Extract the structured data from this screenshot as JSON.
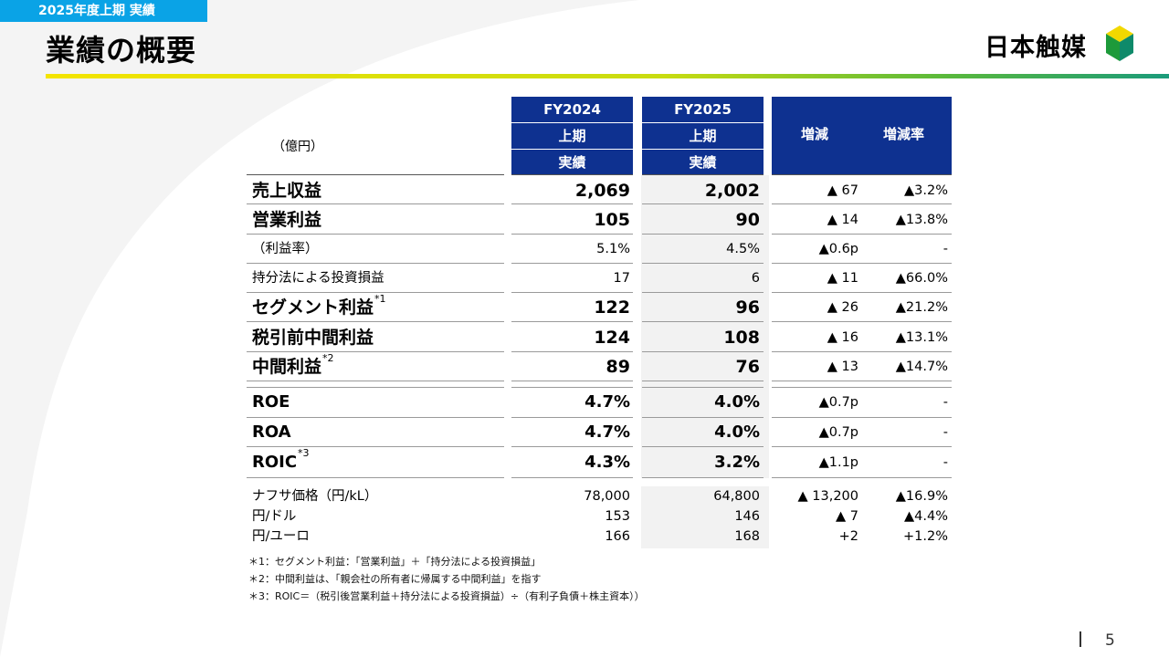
{
  "header": {
    "tag": "2025年度上期 実績",
    "title": "業績の概要",
    "logo_text": "日本触媒",
    "colors": {
      "tag_bg": "#0aa3e6",
      "header_bg": "#0e3190",
      "rule_start": "#f4e400",
      "rule_end": "#1a9b7b"
    }
  },
  "table": {
    "unit_label": "（億円）",
    "col_fy2024": {
      "line1": "FY2024",
      "line2": "上期",
      "line3": "実績"
    },
    "col_fy2025": {
      "line1": "FY2025",
      "line2": "上期",
      "line3": "実績"
    },
    "col_change": "増減",
    "col_change_rate": "増減率",
    "rows": [
      {
        "label": "売上収益",
        "fy2024": "2,069",
        "fy2025": "2,002",
        "change": "▲ 67",
        "rate": "▲3.2%"
      },
      {
        "label": "営業利益",
        "fy2024": "105",
        "fy2025": "90",
        "change": "▲ 14",
        "rate": "▲13.8%"
      },
      {
        "label": "（利益率）",
        "fy2024": "5.1%",
        "fy2025": "4.5%",
        "change": "▲0.6p",
        "rate": "-"
      },
      {
        "label": "持分法による投資損益",
        "fy2024": "17",
        "fy2025": "6",
        "change": "▲ 11",
        "rate": "▲66.0%"
      },
      {
        "label": "セグメント利益",
        "sup": "*1",
        "fy2024": "122",
        "fy2025": "96",
        "change": "▲ 26",
        "rate": "▲21.2%"
      },
      {
        "label": "税引前中間利益",
        "fy2024": "124",
        "fy2025": "108",
        "change": "▲ 16",
        "rate": "▲13.1%"
      },
      {
        "label": "中間利益",
        "sup": "*2",
        "fy2024": "89",
        "fy2025": "76",
        "change": "▲ 13",
        "rate": "▲14.7%"
      },
      {
        "label": "ROE",
        "fy2024": "4.7%",
        "fy2025": "4.0%",
        "change": "▲0.7p",
        "rate": "-"
      },
      {
        "label": "ROA",
        "fy2024": "4.7%",
        "fy2025": "4.0%",
        "change": "▲0.7p",
        "rate": "-"
      },
      {
        "label": "ROIC",
        "sup": "*3",
        "fy2024": "4.3%",
        "fy2025": "3.2%",
        "change": "▲1.1p",
        "rate": "-"
      }
    ],
    "ref_rows": [
      {
        "label": "ナフサ価格（円/kL）",
        "fy2024": "78,000",
        "fy2025": "64,800",
        "change": "▲ 13,200",
        "rate": "▲16.9%"
      },
      {
        "label": "円/ドル",
        "fy2024": "153",
        "fy2025": "146",
        "change": "▲ 7",
        "rate": "▲4.4%"
      },
      {
        "label": "円/ユーロ",
        "fy2024": "166",
        "fy2025": "168",
        "change": "+2",
        "rate": "+1.2%"
      }
    ]
  },
  "notes": [
    "＊1：セグメント利益：「営業利益」＋「持分法による投資損益」",
    "＊2：中間利益は、「親会社の所有者に帰属する中間利益」を指す",
    "＊3：ROIC＝（税引後営業利益＋持分法による投資損益）÷（有利子負債＋株主資本））"
  ],
  "page_number": "5"
}
